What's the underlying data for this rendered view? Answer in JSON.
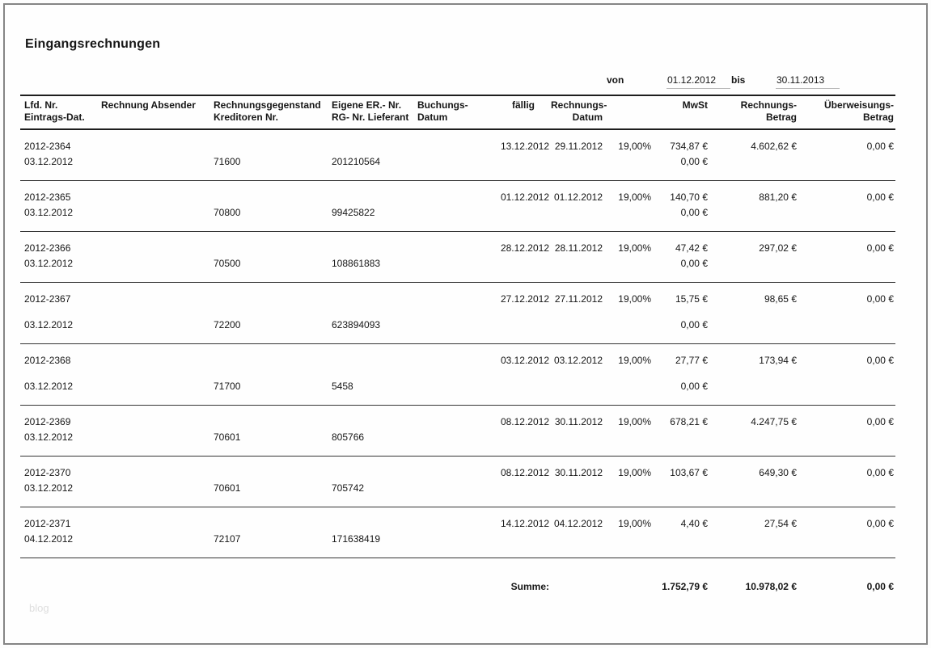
{
  "page": {
    "title": "Eingangsrechnungen",
    "watermark": "blog"
  },
  "period": {
    "von_label": "von",
    "von_value": "01.12.2012",
    "bis_label": "bis",
    "bis_value": "30.11.2013"
  },
  "table": {
    "headers": [
      {
        "line1": "Lfd. Nr.",
        "line2": "Eintrags-Dat."
      },
      {
        "line1": "Rechnung Absender",
        "line2": ""
      },
      {
        "line1": "Rechnungsgegenstand",
        "line2": "Kreditoren Nr."
      },
      {
        "line1": "Eigene ER.- Nr.",
        "line2": "RG- Nr. Lieferant"
      },
      {
        "line1": "Buchungs-",
        "line2": "Datum"
      },
      {
        "line1": "fällig",
        "line2": ""
      },
      {
        "line1": "Rechnungs-",
        "line2": "Datum"
      },
      {
        "line1": "MwSt",
        "line2": ""
      },
      {
        "line1": "Rechnungs-",
        "line2": "Betrag"
      },
      {
        "line1": "Überweisungs-",
        "line2": "Betrag"
      }
    ],
    "rows": [
      {
        "lfd_nr": "2012-2364",
        "eintrags_dat": "03.12.2012",
        "kreditoren_nr": "71600",
        "rg_nr_lieferant": "201210564",
        "faellig": "13.12.2012",
        "rechnungs_datum": "29.11.2012",
        "mwst_satz": "19,00%",
        "mwst_betrag": "734,87 €",
        "mwst_betrag_2": "0,00 €",
        "rechnungs_betrag": "4.602,62 €",
        "ueberweisungs_betrag": "0,00 €"
      },
      {
        "lfd_nr": "2012-2365",
        "eintrags_dat": "03.12.2012",
        "kreditoren_nr": "70800",
        "rg_nr_lieferant": "99425822",
        "faellig": "01.12.2012",
        "rechnungs_datum": "01.12.2012",
        "mwst_satz": "19,00%",
        "mwst_betrag": "140,70 €",
        "mwst_betrag_2": "0,00 €",
        "rechnungs_betrag": "881,20 €",
        "ueberweisungs_betrag": "0,00 €"
      },
      {
        "lfd_nr": "2012-2366",
        "eintrags_dat": "03.12.2012",
        "kreditoren_nr": "70500",
        "rg_nr_lieferant": "108861883",
        "faellig": "28.12.2012",
        "rechnungs_datum": "28.11.2012",
        "mwst_satz": "19,00%",
        "mwst_betrag": "47,42 €",
        "mwst_betrag_2": "0,00 €",
        "rechnungs_betrag": "297,02 €",
        "ueberweisungs_betrag": "0,00 €"
      },
      {
        "lfd_nr": "2012-2367",
        "eintrags_dat": "03.12.2012",
        "kreditoren_nr": "72200",
        "rg_nr_lieferant": "623894093",
        "faellig": "27.12.2012",
        "rechnungs_datum": "27.11.2012",
        "mwst_satz": "19,00%",
        "mwst_betrag": "15,75 €",
        "mwst_betrag_2": "0,00 €",
        "rechnungs_betrag": "98,65 €",
        "ueberweisungs_betrag": "0,00 €"
      },
      {
        "lfd_nr": "2012-2368",
        "eintrags_dat": "03.12.2012",
        "kreditoren_nr": "71700",
        "rg_nr_lieferant": "5458",
        "faellig": "03.12.2012",
        "rechnungs_datum": "03.12.2012",
        "mwst_satz": "19,00%",
        "mwst_betrag": "27,77 €",
        "mwst_betrag_2": "0,00 €",
        "rechnungs_betrag": "173,94 €",
        "ueberweisungs_betrag": "0,00 €"
      },
      {
        "lfd_nr": "2012-2369",
        "eintrags_dat": "03.12.2012",
        "kreditoren_nr": "70601",
        "rg_nr_lieferant": "805766",
        "faellig": "08.12.2012",
        "rechnungs_datum": "30.11.2012",
        "mwst_satz": "19,00%",
        "mwst_betrag": "678,21 €",
        "mwst_betrag_2": "",
        "rechnungs_betrag": "4.247,75 €",
        "ueberweisungs_betrag": "0,00 €"
      },
      {
        "lfd_nr": "2012-2370",
        "eintrags_dat": "03.12.2012",
        "kreditoren_nr": "70601",
        "rg_nr_lieferant": "705742",
        "faellig": "08.12.2012",
        "rechnungs_datum": "30.11.2012",
        "mwst_satz": "19,00%",
        "mwst_betrag": "103,67 €",
        "mwst_betrag_2": "",
        "rechnungs_betrag": "649,30 €",
        "ueberweisungs_betrag": "0,00 €"
      },
      {
        "lfd_nr": "2012-2371",
        "eintrags_dat": "04.12.2012",
        "kreditoren_nr": "72107",
        "rg_nr_lieferant": "171638419",
        "faellig": "14.12.2012",
        "rechnungs_datum": "04.12.2012",
        "mwst_satz": "19,00%",
        "mwst_betrag": "4,40 €",
        "mwst_betrag_2": "",
        "rechnungs_betrag": "27,54 €",
        "ueberweisungs_betrag": "0,00 €"
      }
    ],
    "summe": {
      "label": "Summe:",
      "mwst": "1.752,79 €",
      "rechnungs_betrag": "10.978,02 €",
      "ueberweisungs_betrag": "0,00 €"
    }
  }
}
